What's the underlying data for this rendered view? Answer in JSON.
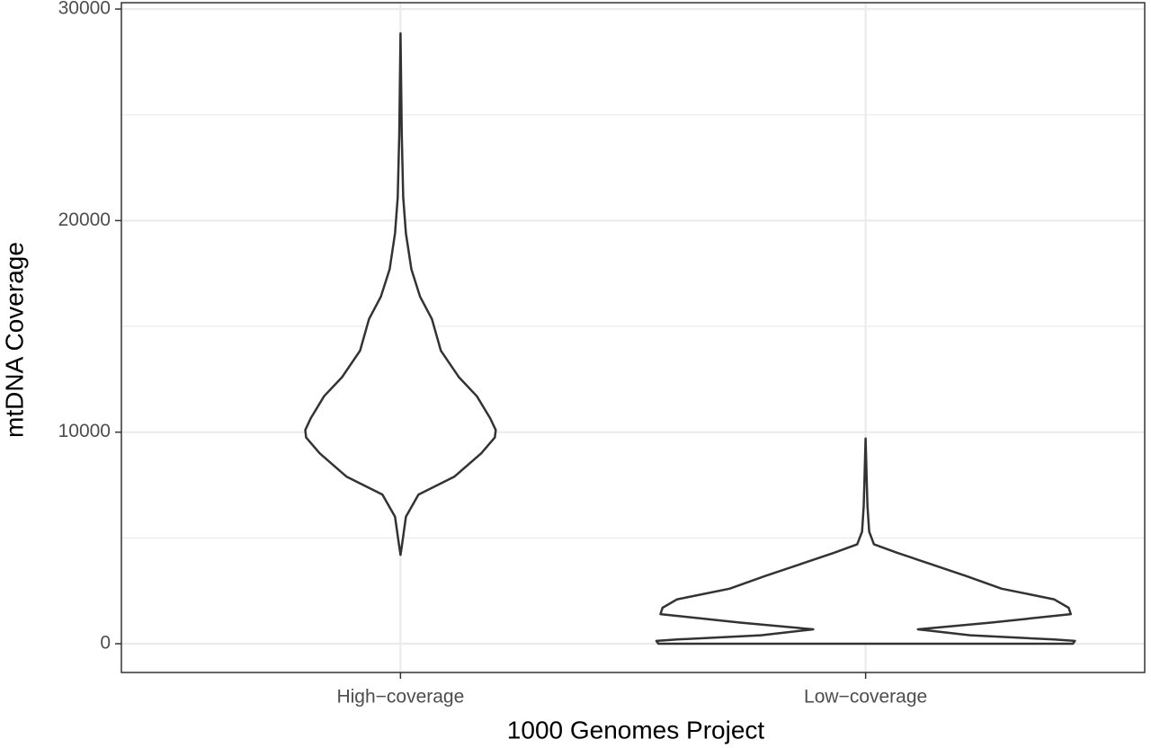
{
  "chart_data": {
    "type": "violin",
    "x_label": "1000 Genomes Project",
    "y_label": "mtDNA Coverage",
    "ylim": [
      -1360,
      30300
    ],
    "yticks": [
      0,
      10000,
      20000,
      30000
    ],
    "minor_yticks": [
      5000,
      15000,
      25000
    ],
    "grid": true,
    "color": "#333333",
    "fill": "#ffffff",
    "violins": [
      {
        "category": "High−coverage",
        "y": [
          4200,
          4800,
          6000,
          7050,
          7900,
          9000,
          9750,
          10100,
          10650,
          11700,
          12600,
          13850,
          15350,
          16400,
          17700,
          19400,
          21100,
          24050,
          28850
        ],
        "density": [
          0,
          0.009,
          0.026,
          0.086,
          0.258,
          0.386,
          0.451,
          0.455,
          0.429,
          0.365,
          0.279,
          0.193,
          0.15,
          0.094,
          0.052,
          0.026,
          0.013,
          0.006,
          0
        ]
      },
      {
        "category": "Low−coverage",
        "y": [
          0,
          130,
          200,
          400,
          680,
          1000,
          1400,
          1700,
          2100,
          2600,
          3200,
          3800,
          4300,
          4700,
          5300,
          6500,
          7500,
          9700
        ],
        "density": [
          0.99,
          1.0,
          0.9,
          0.5,
          0.25,
          0.6,
          0.98,
          0.97,
          0.9,
          0.65,
          0.48,
          0.3,
          0.15,
          0.04,
          0.017,
          0.009,
          0.006,
          0
        ]
      }
    ]
  }
}
